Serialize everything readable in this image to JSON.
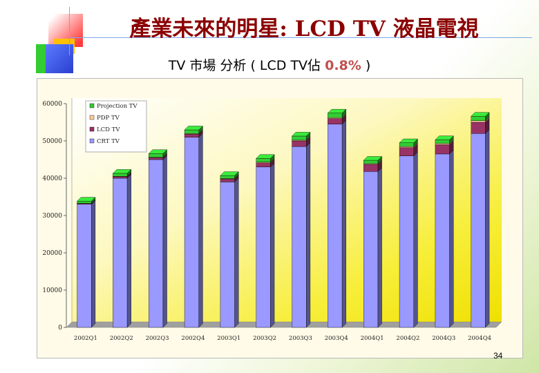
{
  "slide": {
    "title": "產業未來的明星: LCD TV 液晶電視",
    "subtitle_prefix": "TV 市場 分析 ( LCD TV佔 ",
    "subtitle_highlight": "0.8%",
    "subtitle_suffix": " )",
    "page_number": "34"
  },
  "chart_data": {
    "type": "bar",
    "stacked": true,
    "title": "",
    "xlabel": "",
    "ylabel": "",
    "ylim": [
      0,
      60000
    ],
    "yticks": [
      0,
      10000,
      20000,
      30000,
      40000,
      50000,
      60000
    ],
    "ytick_labels": [
      "0",
      "10000",
      "20000",
      "30000",
      "40000",
      "50000",
      "60000"
    ],
    "categories": [
      "2002Q1",
      "2002Q2",
      "2002Q3",
      "2002Q4",
      "2003Q1",
      "2003Q2",
      "2003Q3",
      "2003Q4",
      "2004Q1",
      "2004Q2",
      "2004Q3",
      "2004Q4"
    ],
    "series": [
      {
        "name": "CRT TV",
        "color": "#9999ff",
        "values": [
          33000,
          40000,
          45000,
          51000,
          39000,
          43000,
          48500,
          54500,
          41800,
          46000,
          46500,
          52000
        ]
      },
      {
        "name": "LCD TV",
        "color": "#993366",
        "values": [
          200,
          400,
          500,
          800,
          800,
          1100,
          1500,
          1500,
          1900,
          2200,
          2500,
          3000
        ]
      },
      {
        "name": "PDP TV",
        "color": "#ffcc99",
        "values": [
          50,
          100,
          100,
          150,
          100,
          200,
          200,
          250,
          200,
          300,
          300,
          400
        ]
      },
      {
        "name": "Projection TV",
        "color": "#33cc33",
        "values": [
          600,
          800,
          1000,
          1000,
          800,
          1000,
          1100,
          1200,
          900,
          1000,
          1000,
          1200
        ]
      }
    ],
    "legend_order": [
      "Projection TV",
      "PDP TV",
      "LCD TV",
      "CRT TV"
    ],
    "legend_position": "top-left",
    "grid": false,
    "background": "yellow-gradient"
  }
}
